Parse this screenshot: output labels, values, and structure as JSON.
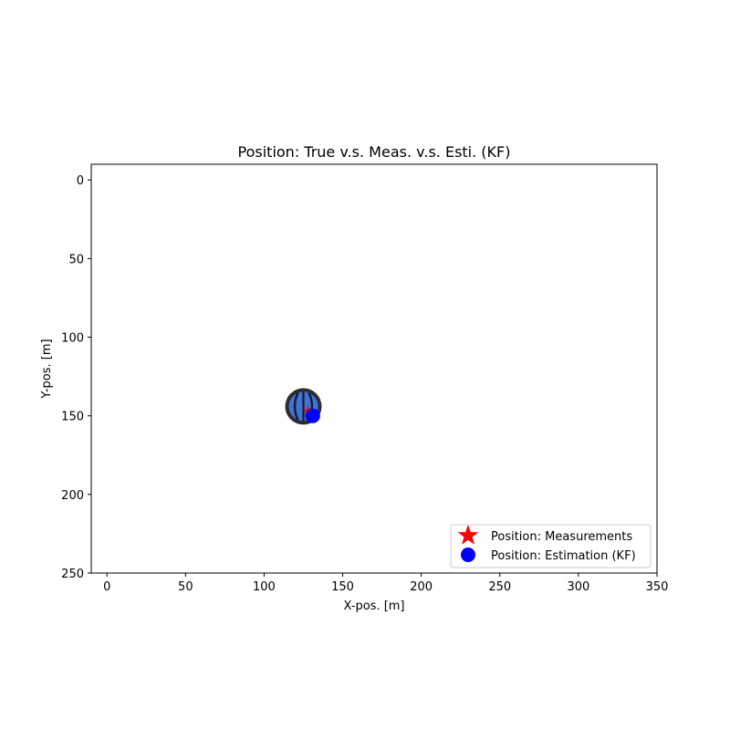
{
  "chart_data": {
    "type": "scatter",
    "title": "Position: True v.s. Meas. v.s. Esti. (KF)",
    "xlabel": "X-pos. [m]",
    "ylabel": "Y-pos. [m]",
    "xlim": [
      -10,
      350
    ],
    "ylim": [
      250,
      -10
    ],
    "y_inverted": true,
    "grid": false,
    "legend_position": "lower-right",
    "xticks": [
      0,
      50,
      100,
      150,
      200,
      250,
      300,
      350
    ],
    "yticks": [
      0,
      50,
      100,
      150,
      200,
      250
    ],
    "true_position": {
      "x": 125,
      "y": 144,
      "icon": "basketball-icon"
    },
    "series": [
      {
        "name": "Position: Measurements",
        "marker": "star",
        "color": "#ff0000",
        "points": [
          {
            "x": 128,
            "y": 147
          }
        ]
      },
      {
        "name": "Position: Estimation (KF)",
        "marker": "circle",
        "color": "#0000ff",
        "points": [
          {
            "x": 131,
            "y": 150
          }
        ]
      }
    ]
  }
}
